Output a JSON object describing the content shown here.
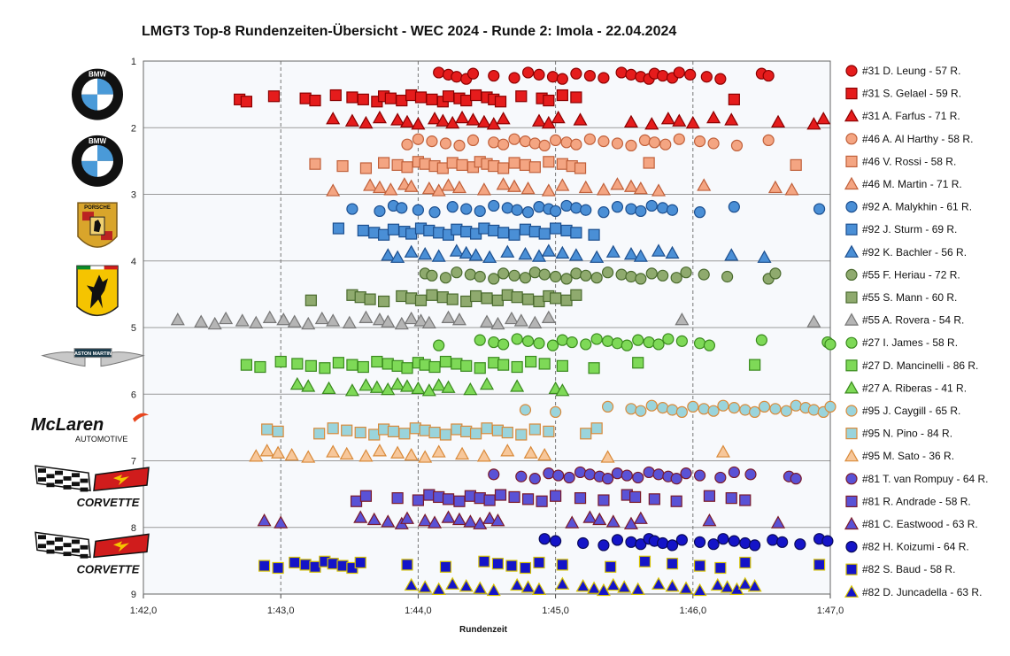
{
  "chart_data": {
    "type": "scatter",
    "title": "LMGT3 Top-8 Rundenzeiten-Übersicht - WEC 2024 - Runde 2: Imola - 22.04.2024",
    "xlabel": "Rundenzeit",
    "xlim": [
      102.0,
      107.0
    ],
    "ylim": [
      1,
      9
    ],
    "x_ticks": [
      "1:42,0",
      "1:43,0",
      "1:44,0",
      "1:45,0",
      "1:46,0",
      "1:47,0"
    ],
    "y_ticks": [
      "1",
      "2",
      "3",
      "4",
      "5",
      "6",
      "7",
      "8",
      "9"
    ],
    "x_grid": "dashed",
    "legend_position": "right",
    "logos": [
      {
        "brand": "BMW",
        "text": "BMW"
      },
      {
        "brand": "BMW",
        "text": "BMW"
      },
      {
        "brand": "Porsche",
        "text": "PORSCHE"
      },
      {
        "brand": "Ferrari",
        "text": "Ferrari"
      },
      {
        "brand": "Aston Martin",
        "text": "ASTON MARTIN"
      },
      {
        "brand": "McLaren",
        "text": "McLaren",
        "subtext": "AUTOMOTIVE"
      },
      {
        "brand": "Corvette",
        "text": "CORVETTE"
      },
      {
        "brand": "Corvette",
        "text": "CORVETTE"
      }
    ],
    "series": [
      {
        "name": "#31 D. Leung - 57 R.",
        "marker": "circle",
        "fill": "#e51c1c",
        "stroke": "#8b0000",
        "band": 1,
        "offset": 0,
        "x": [
          104.15,
          104.22,
          104.28,
          104.35,
          104.4,
          104.55,
          104.7,
          104.8,
          104.88,
          104.98,
          105.05,
          105.15,
          105.25,
          105.35,
          105.48,
          105.55,
          105.62,
          105.68,
          105.72,
          105.78,
          105.85,
          105.9,
          105.98,
          106.1,
          106.2,
          106.5,
          106.55
        ]
      },
      {
        "name": "#31 S. Gelael - 59 R.",
        "marker": "square",
        "fill": "#e51c1c",
        "stroke": "#8b0000",
        "band": 1,
        "offset": 1,
        "x": [
          102.7,
          102.75,
          102.95,
          103.18,
          103.25,
          103.4,
          103.52,
          103.6,
          103.7,
          103.75,
          103.8,
          103.88,
          103.95,
          104.02,
          104.1,
          104.18,
          104.22,
          104.3,
          104.35,
          104.42,
          104.5,
          104.55,
          104.6,
          104.75,
          104.9,
          104.95,
          105.05,
          105.15,
          106.3
        ]
      },
      {
        "name": "#31 A. Farfus - 71 R.",
        "marker": "triangle",
        "fill": "#e51c1c",
        "stroke": "#8b0000",
        "band": 1,
        "offset": 2,
        "x": [
          103.38,
          103.52,
          103.62,
          103.72,
          103.85,
          103.92,
          104.0,
          104.12,
          104.18,
          104.25,
          104.32,
          104.4,
          104.48,
          104.55,
          104.62,
          104.88,
          104.95,
          105.02,
          105.18,
          105.55,
          105.7,
          105.82,
          105.9,
          106.0,
          106.15,
          106.28,
          106.62,
          106.88,
          106.95
        ]
      },
      {
        "name": "#46 A. Al Harthy - 58 R.",
        "marker": "circle",
        "fill": "#f4a582",
        "stroke": "#c0603a",
        "band": 2,
        "offset": 0,
        "x": [
          103.92,
          104.0,
          104.1,
          104.2,
          104.3,
          104.4,
          104.55,
          104.62,
          104.7,
          104.78,
          104.85,
          104.92,
          105.0,
          105.08,
          105.15,
          105.25,
          105.35,
          105.45,
          105.55,
          105.65,
          105.72,
          105.8,
          105.9,
          106.05,
          106.15,
          106.32,
          106.55
        ]
      },
      {
        "name": "#46 V. Rossi - 58 R.",
        "marker": "square",
        "fill": "#f4a582",
        "stroke": "#c0603a",
        "band": 2,
        "offset": 1,
        "x": [
          103.25,
          103.45,
          103.62,
          103.75,
          103.85,
          103.92,
          104.0,
          104.05,
          104.12,
          104.18,
          104.25,
          104.32,
          104.4,
          104.45,
          104.5,
          104.55,
          104.62,
          104.7,
          104.78,
          104.85,
          104.95,
          105.05,
          105.12,
          105.18,
          105.68,
          106.75
        ]
      },
      {
        "name": "#46 M. Martin - 71 R.",
        "marker": "triangle",
        "fill": "#f4a582",
        "stroke": "#c0603a",
        "band": 2,
        "offset": 2,
        "x": [
          103.38,
          103.65,
          103.72,
          103.8,
          103.9,
          103.95,
          104.08,
          104.15,
          104.22,
          104.3,
          104.48,
          104.62,
          104.7,
          104.8,
          104.95,
          105.05,
          105.22,
          105.35,
          105.45,
          105.55,
          105.62,
          105.75,
          106.08,
          106.6,
          106.72
        ]
      },
      {
        "name": "#92 A. Malykhin - 61 R.",
        "marker": "circle",
        "fill": "#4a8fd6",
        "stroke": "#1c4f8f",
        "band": 3,
        "offset": 0,
        "x": [
          103.52,
          103.72,
          103.82,
          103.88,
          104.0,
          104.12,
          104.25,
          104.35,
          104.45,
          104.55,
          104.65,
          104.72,
          104.8,
          104.88,
          104.95,
          105.0,
          105.08,
          105.15,
          105.22,
          105.35,
          105.45,
          105.55,
          105.62,
          105.7,
          105.78,
          105.85,
          106.05,
          106.3,
          106.92
        ]
      },
      {
        "name": "#92 J. Sturm - 69 R.",
        "marker": "square",
        "fill": "#4a8fd6",
        "stroke": "#1c4f8f",
        "band": 3,
        "offset": 1,
        "x": [
          103.42,
          103.6,
          103.68,
          103.75,
          103.82,
          103.9,
          103.95,
          104.02,
          104.08,
          104.15,
          104.22,
          104.28,
          104.35,
          104.42,
          104.48,
          104.55,
          104.62,
          104.7,
          104.78,
          104.85,
          104.92,
          105.0,
          105.08,
          105.15,
          105.28
        ]
      },
      {
        "name": "#92 K. Bachler - 56 R.",
        "marker": "triangle",
        "fill": "#4a8fd6",
        "stroke": "#1c4f8f",
        "band": 3,
        "offset": 2,
        "x": [
          103.78,
          103.85,
          103.95,
          104.05,
          104.15,
          104.28,
          104.35,
          104.42,
          104.52,
          104.65,
          104.78,
          104.88,
          104.95,
          105.05,
          105.15,
          105.3,
          105.42,
          105.55,
          105.62,
          105.75,
          105.85,
          106.28,
          106.52
        ]
      },
      {
        "name": "#55 F. Heriau - 72 R.",
        "marker": "circle",
        "fill": "#8faa6e",
        "stroke": "#4a6a2e",
        "band": 4,
        "offset": 0,
        "x": [
          104.05,
          104.1,
          104.2,
          104.28,
          104.38,
          104.45,
          104.55,
          104.62,
          104.7,
          104.78,
          104.85,
          104.92,
          105.0,
          105.08,
          105.15,
          105.22,
          105.3,
          105.38,
          105.48,
          105.55,
          105.62,
          105.7,
          105.78,
          105.88,
          105.95,
          106.08,
          106.25,
          106.55,
          106.6
        ]
      },
      {
        "name": "#55 S. Mann - 60 R.",
        "marker": "square",
        "fill": "#8faa6e",
        "stroke": "#4a6a2e",
        "band": 4,
        "offset": 1,
        "x": [
          103.22,
          103.52,
          103.58,
          103.65,
          103.75,
          103.88,
          103.95,
          104.02,
          104.1,
          104.18,
          104.25,
          104.35,
          104.42,
          104.5,
          104.58,
          104.65,
          104.72,
          104.8,
          104.88,
          104.95,
          105.0,
          105.08,
          105.15
        ]
      },
      {
        "name": "#55 A. Rovera - 54 R.",
        "marker": "triangle",
        "fill": "#b5b5b5",
        "stroke": "#777777",
        "band": 4,
        "offset": 2,
        "x": [
          102.25,
          102.42,
          102.52,
          102.6,
          102.72,
          102.82,
          102.92,
          103.02,
          103.1,
          103.2,
          103.3,
          103.38,
          103.5,
          103.62,
          103.72,
          103.78,
          103.88,
          103.95,
          104.02,
          104.08,
          104.22,
          104.3,
          104.5,
          104.58,
          104.68,
          104.75,
          104.85,
          104.95,
          105.92,
          106.88
        ]
      },
      {
        "name": "#27 I. James - 58 R.",
        "marker": "circle",
        "fill": "#7ed957",
        "stroke": "#3a8a1e",
        "band": 5,
        "offset": 0,
        "x": [
          104.15,
          104.45,
          104.55,
          104.62,
          104.72,
          104.8,
          104.88,
          104.98,
          105.05,
          105.12,
          105.22,
          105.3,
          105.38,
          105.45,
          105.52,
          105.6,
          105.68,
          105.75,
          105.82,
          105.92,
          106.05,
          106.12,
          106.5,
          106.98,
          107.0
        ]
      },
      {
        "name": "#27 D. Mancinelli - 86 R.",
        "marker": "square",
        "fill": "#7ed957",
        "stroke": "#3a8a1e",
        "band": 5,
        "offset": 1,
        "x": [
          102.75,
          102.85,
          103.0,
          103.12,
          103.22,
          103.32,
          103.42,
          103.52,
          103.6,
          103.7,
          103.78,
          103.85,
          103.92,
          104.0,
          104.05,
          104.12,
          104.2,
          104.28,
          104.35,
          104.45,
          104.55,
          104.62,
          104.72,
          104.82,
          104.92,
          105.05,
          105.28,
          105.6,
          106.45
        ]
      },
      {
        "name": "#27 A. Riberas - 41 R.",
        "marker": "triangle",
        "fill": "#7ed957",
        "stroke": "#3a8a1e",
        "band": 5,
        "offset": 2,
        "x": [
          103.12,
          103.2,
          103.35,
          103.52,
          103.62,
          103.7,
          103.78,
          103.85,
          103.92,
          104.0,
          104.08,
          104.15,
          104.22,
          104.38,
          104.5,
          104.72,
          105.0,
          105.05
        ]
      },
      {
        "name": "#95 J. Caygill - 65 R.",
        "marker": "circle",
        "fill": "#9ad4dc",
        "stroke": "#d98a3a",
        "band": 6,
        "offset": 0,
        "x": [
          104.78,
          105.0,
          105.38,
          105.55,
          105.62,
          105.7,
          105.78,
          105.85,
          105.92,
          106.0,
          106.08,
          106.15,
          106.22,
          106.3,
          106.38,
          106.45,
          106.52,
          106.6,
          106.68,
          106.75,
          106.82,
          106.88,
          106.95,
          107.0
        ]
      },
      {
        "name": "#95 N. Pino - 84 R.",
        "marker": "square",
        "fill": "#9ad4dc",
        "stroke": "#d98a3a",
        "band": 6,
        "offset": 1,
        "x": [
          102.9,
          102.98,
          103.28,
          103.38,
          103.48,
          103.58,
          103.68,
          103.75,
          103.82,
          103.9,
          103.98,
          104.05,
          104.12,
          104.2,
          104.28,
          104.35,
          104.42,
          104.5,
          104.58,
          104.65,
          104.75,
          104.85,
          104.95,
          105.22,
          105.3
        ]
      },
      {
        "name": "#95 M. Sato - 36 R.",
        "marker": "triangle",
        "fill": "#f7c79a",
        "stroke": "#d98a3a",
        "band": 6,
        "offset": 2,
        "x": [
          102.82,
          102.9,
          102.98,
          103.08,
          103.2,
          103.38,
          103.48,
          103.62,
          103.72,
          103.85,
          103.95,
          104.05,
          104.15,
          104.32,
          104.48,
          104.65,
          104.82,
          104.92,
          105.38,
          106.22
        ]
      },
      {
        "name": "#81 T. van Rompuy - 64 R.",
        "marker": "circle",
        "fill": "#5a52d6",
        "stroke": "#7a1a2a",
        "band": 7,
        "offset": 0,
        "x": [
          104.55,
          104.75,
          104.85,
          104.95,
          105.02,
          105.1,
          105.18,
          105.25,
          105.32,
          105.38,
          105.45,
          105.52,
          105.6,
          105.68,
          105.75,
          105.82,
          105.88,
          105.95,
          106.05,
          106.2,
          106.3,
          106.42,
          106.7,
          106.75
        ]
      },
      {
        "name": "#81 R. Andrade - 58 R.",
        "marker": "square",
        "fill": "#5a52d6",
        "stroke": "#7a1a2a",
        "band": 7,
        "offset": 1,
        "x": [
          103.55,
          103.62,
          103.85,
          104.0,
          104.08,
          104.15,
          104.22,
          104.3,
          104.38,
          104.45,
          104.52,
          104.6,
          104.7,
          104.8,
          104.9,
          105.0,
          105.18,
          105.35,
          105.52,
          105.58,
          105.72,
          105.88,
          106.12,
          106.28,
          106.38
        ]
      },
      {
        "name": "#81 C. Eastwood - 63 R.",
        "marker": "triangle",
        "fill": "#5a52d6",
        "stroke": "#7a1a2a",
        "band": 7,
        "offset": 2,
        "x": [
          102.88,
          103.0,
          103.58,
          103.68,
          103.78,
          103.88,
          103.92,
          104.05,
          104.12,
          104.22,
          104.3,
          104.38,
          104.45,
          104.52,
          104.58,
          105.12,
          105.25,
          105.32,
          105.42,
          105.55,
          105.62,
          106.12,
          106.62
        ]
      },
      {
        "name": "#82 H. Koizumi - 64 R.",
        "marker": "circle",
        "fill": "#1414c8",
        "stroke": "#0a0a5a",
        "band": 8,
        "offset": 0,
        "x": [
          104.92,
          105.0,
          105.2,
          105.35,
          105.45,
          105.55,
          105.62,
          105.68,
          105.72,
          105.78,
          105.85,
          105.92,
          106.05,
          106.15,
          106.22,
          106.3,
          106.38,
          106.45,
          106.58,
          106.65,
          106.78,
          106.92,
          106.98
        ]
      },
      {
        "name": "#82 S. Baud - 58 R.",
        "marker": "square",
        "fill": "#1414c8",
        "stroke": "#d4c000",
        "band": 8,
        "offset": 1,
        "x": [
          102.88,
          102.98,
          103.1,
          103.18,
          103.25,
          103.32,
          103.38,
          103.45,
          103.52,
          103.58,
          103.92,
          104.2,
          104.48,
          104.58,
          104.68,
          104.78,
          104.88,
          105.05,
          105.4,
          105.65,
          105.85,
          106.05,
          106.2,
          106.38,
          106.92
        ]
      },
      {
        "name": "#82 D. Juncadella - 63 R.",
        "marker": "triangle",
        "fill": "#1414c8",
        "stroke": "#d4c000",
        "band": 8,
        "offset": 2,
        "x": [
          103.95,
          104.05,
          104.15,
          104.25,
          104.35,
          104.45,
          104.55,
          104.72,
          104.8,
          104.88,
          105.05,
          105.2,
          105.28,
          105.35,
          105.42,
          105.5,
          105.6,
          105.75,
          105.85,
          105.95,
          106.05,
          106.18,
          106.25,
          106.32,
          106.38,
          106.45
        ]
      }
    ]
  }
}
